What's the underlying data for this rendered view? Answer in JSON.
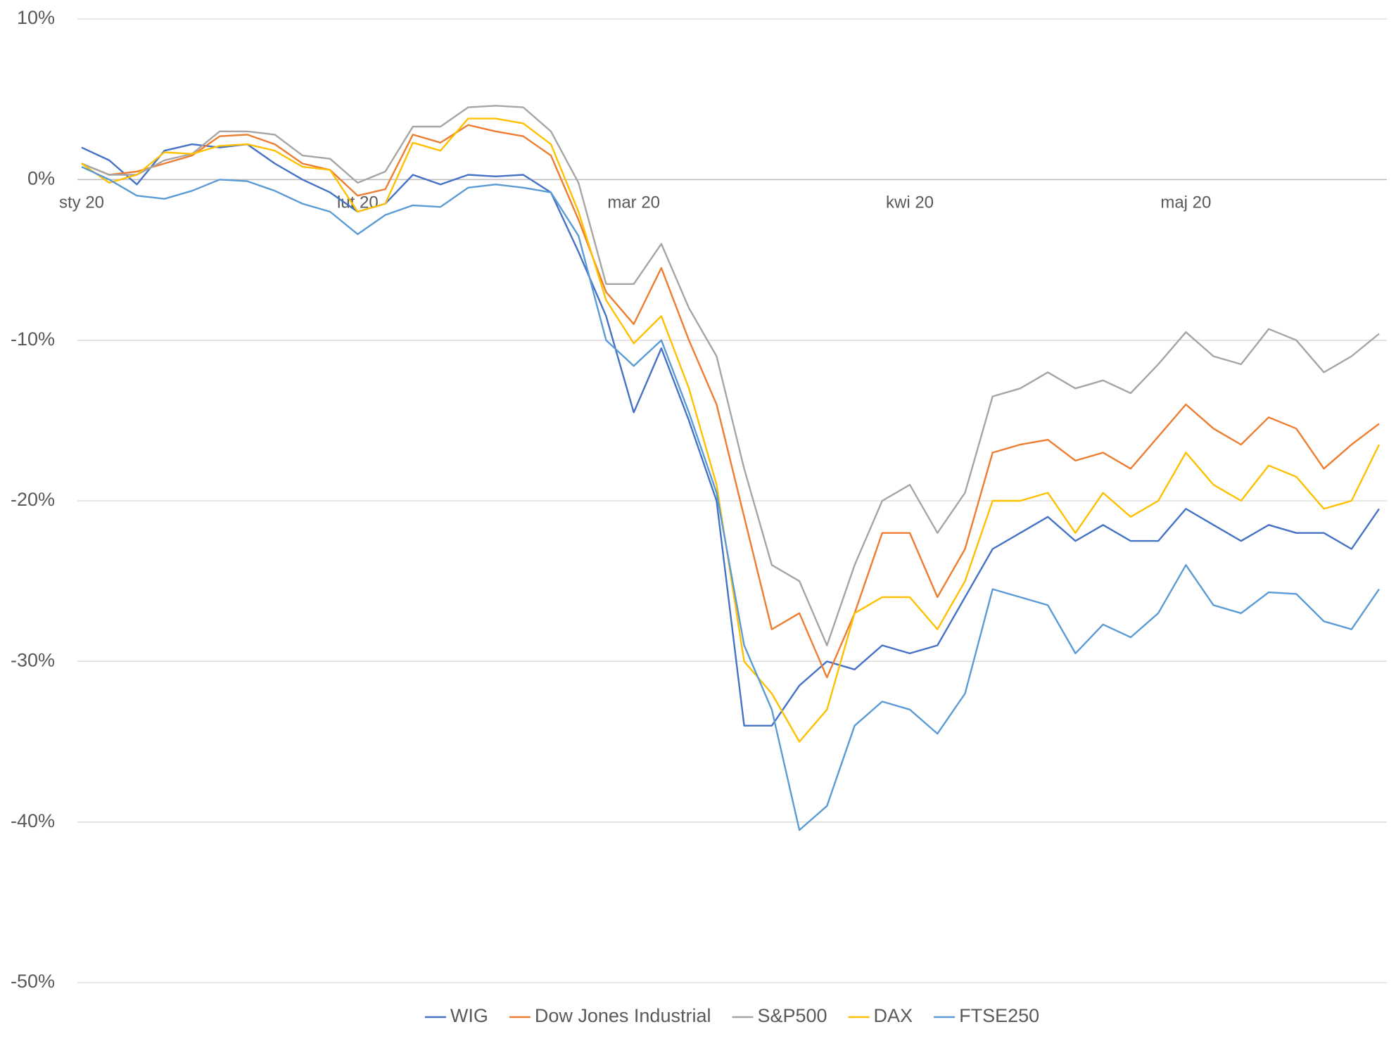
{
  "chart_data": {
    "type": "line",
    "categories": [
      "sty 20",
      null,
      null,
      null,
      null,
      null,
      null,
      null,
      null,
      null,
      "lut 20",
      null,
      null,
      null,
      null,
      null,
      null,
      null,
      null,
      null,
      "mar 20",
      null,
      null,
      null,
      null,
      null,
      null,
      null,
      null,
      null,
      "kwi 20",
      null,
      null,
      null,
      null,
      null,
      null,
      null,
      null,
      null,
      "maj 20",
      null,
      null,
      null,
      null,
      null,
      null,
      null
    ],
    "series": [
      {
        "name": "WIG",
        "color": "#4472c4",
        "values": [
          2,
          1.2,
          -0.3,
          1.8,
          2.2,
          2,
          2.2,
          1,
          0,
          -0.8,
          -2,
          -1.5,
          0.3,
          -0.3,
          0.3,
          0.2,
          0.3,
          -0.8,
          -4.5,
          -8.5,
          -14.5,
          -10.5,
          -15,
          -20,
          -34,
          -34,
          -31.5,
          -30,
          -30.5,
          -29,
          -29.5,
          -29,
          -26,
          -23,
          -22,
          -21,
          -22.5,
          -21.5,
          -22.5,
          -22.5,
          -20.5,
          -21.5,
          -22.5,
          -21.5,
          -22,
          -22,
          -23,
          -20.5
        ]
      },
      {
        "name": "Dow Jones Industrial",
        "color": "#ed7d31",
        "values": [
          1,
          0.3,
          0.5,
          1,
          1.5,
          2.7,
          2.8,
          2.2,
          1,
          0.6,
          -1,
          -0.6,
          2.8,
          2.3,
          3.4,
          3,
          2.7,
          1.5,
          -2.5,
          -7,
          -9,
          -5.5,
          -10,
          -14,
          -21,
          -28,
          -27,
          -31,
          -27,
          -22,
          -22,
          -26,
          -23,
          -17,
          -16.5,
          -16.2,
          -17.5,
          -17,
          -18,
          -16,
          -14,
          -15.5,
          -16.5,
          -14.8,
          -15.5,
          -18,
          -16.5,
          -15.2
        ]
      },
      {
        "name": "S&P500",
        "color": "#a5a5a5",
        "values": [
          1,
          0.3,
          0.3,
          1.2,
          1.6,
          3,
          3,
          2.8,
          1.5,
          1.3,
          -0.2,
          0.5,
          3.3,
          3.3,
          4.5,
          4.6,
          4.5,
          3,
          -0.2,
          -6.5,
          -6.5,
          -4,
          -8,
          -11,
          -18,
          -24,
          -25,
          -29,
          -24,
          -20,
          -19,
          -22,
          -19.5,
          -13.5,
          -13,
          -12,
          -13,
          -12.5,
          -13.3,
          -11.5,
          -9.5,
          -11,
          -11.5,
          -9.3,
          -10,
          -12,
          -11,
          -9.6
        ]
      },
      {
        "name": "DAX",
        "color": "#ffc000",
        "values": [
          1,
          -0.2,
          0.3,
          1.7,
          1.6,
          2.1,
          2.2,
          1.8,
          0.8,
          0.6,
          -2,
          -1.5,
          2.3,
          1.8,
          3.8,
          3.8,
          3.5,
          2.2,
          -2,
          -7.5,
          -10.2,
          -8.5,
          -13,
          -19,
          -30,
          -32,
          -35,
          -33,
          -27,
          -26,
          -26,
          -28,
          -25,
          -20,
          -20,
          -19.5,
          -22,
          -19.5,
          -21,
          -20,
          -17,
          -19,
          -20,
          -17.8,
          -18.5,
          -20.5,
          -20,
          -16.5
        ]
      },
      {
        "name": "FTSE250",
        "color": "#5b9bd5",
        "values": [
          0.8,
          0,
          -1,
          -1.2,
          -0.7,
          0,
          -0.1,
          -0.7,
          -1.5,
          -2,
          -3.4,
          -2.2,
          -1.6,
          -1.7,
          -0.5,
          -0.3,
          -0.5,
          -0.8,
          -3.5,
          -10,
          -11.6,
          -10,
          -14.5,
          -19.5,
          -29,
          -33,
          -40.5,
          -39,
          -34,
          -32.5,
          -33,
          -34.5,
          -32,
          -25.5,
          -26,
          -26.5,
          -29.5,
          -27.7,
          -28.5,
          -27,
          -24,
          -26.5,
          -27,
          -25.7,
          -25.8,
          -27.5,
          -28,
          -25.5
        ]
      }
    ],
    "ylim": [
      -50,
      10
    ],
    "yticks": [
      {
        "value": -50,
        "label": "-50%"
      },
      {
        "value": -40,
        "label": "-40%"
      },
      {
        "value": -30,
        "label": "-30%"
      },
      {
        "value": -20,
        "label": "-20%"
      },
      {
        "value": -10,
        "label": "-10%"
      },
      {
        "value": 0,
        "label": "0%"
      },
      {
        "value": 10,
        "label": "10%"
      }
    ],
    "grid": true,
    "legend": "bottom"
  }
}
